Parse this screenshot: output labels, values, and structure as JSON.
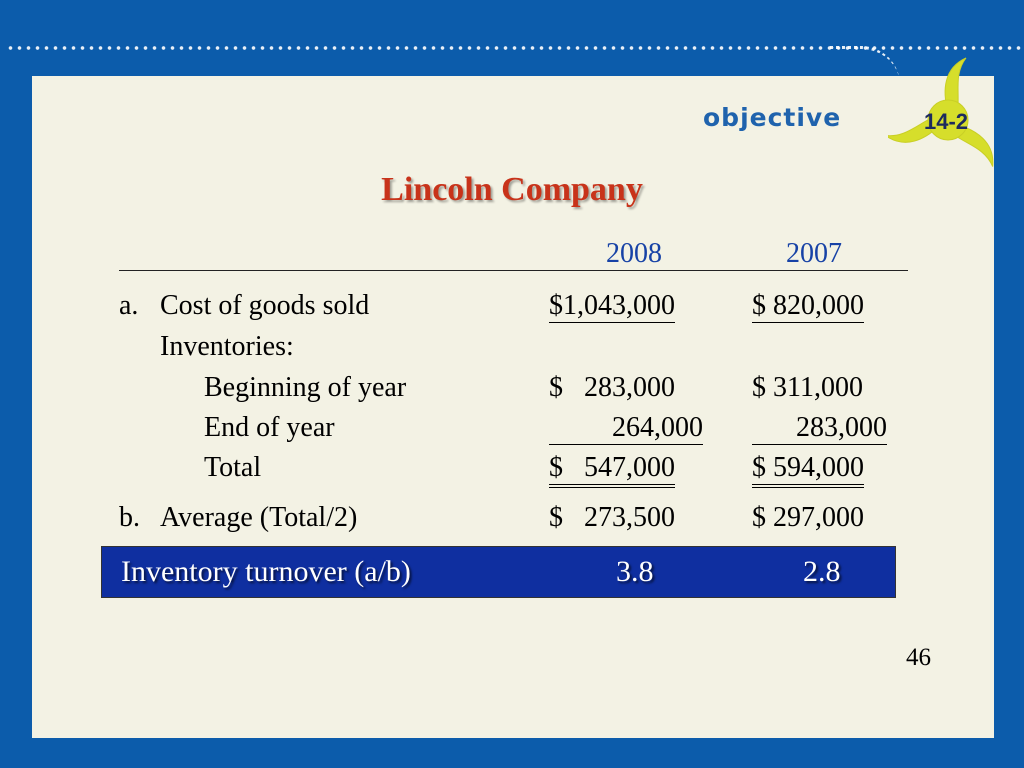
{
  "header": {
    "objective_label": "objective",
    "objective_number": "14-2"
  },
  "title": "Lincoln Company",
  "columns": {
    "year1": "2008",
    "year2": "2007"
  },
  "rows": {
    "a_marker": "a.",
    "cogs_label": "Cost of goods sold",
    "cogs_2008": "$1,043,000",
    "cogs_2007": "$ 820,000",
    "inventories_label": "Inventories:",
    "begin_label": "Beginning of year",
    "begin_2008": "$   283,000",
    "begin_2007": "$ 311,000",
    "end_label": "End of year",
    "end_2008": "264,000",
    "end_2007": "283,000",
    "total_label": "Total",
    "total_2008": "$   547,000",
    "total_2007": "$ 594,000",
    "b_marker": "b.",
    "avg_label": "Average (Total/2)",
    "avg_2008": "$   273,500",
    "avg_2007": "$ 297,000"
  },
  "result": {
    "label": "Inventory turnover (a/b)",
    "value_2008": "3.8",
    "value_2007": "2.8"
  },
  "page_number": "46",
  "colors": {
    "frame": "#0c5cab",
    "panel": "#f3f2e4",
    "title": "#c8331a",
    "year": "#1742a6",
    "bar": "#0f2fa0",
    "pinwheel": "#d6de2b"
  }
}
